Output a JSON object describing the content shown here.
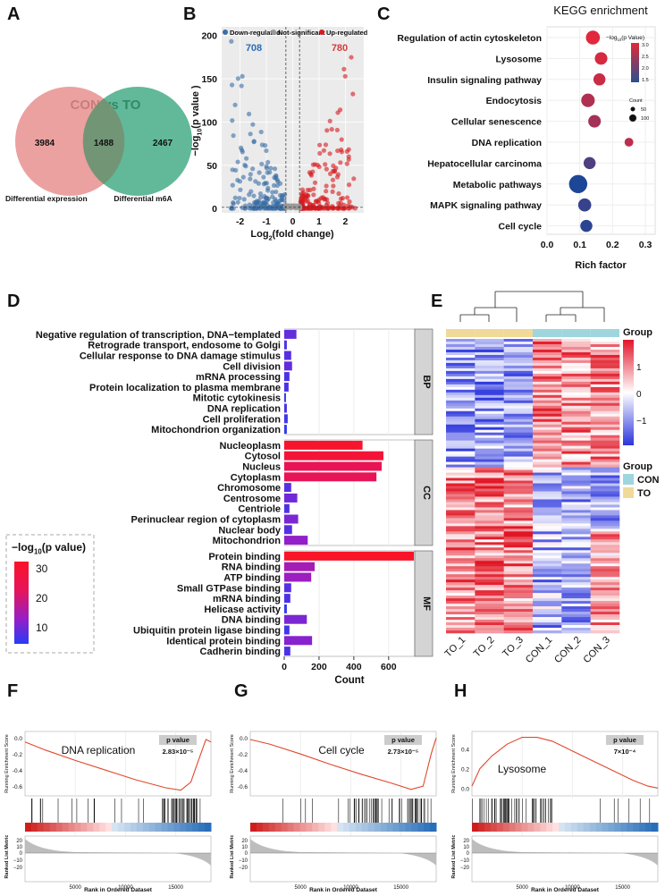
{
  "panels": {
    "A": "A",
    "B": "B",
    "C": "C",
    "D": "D",
    "E": "E",
    "F": "F",
    "G": "G",
    "H": "H"
  },
  "colors": {
    "up": "#d7191c",
    "down": "#3a6ea5",
    "ns": "#999999",
    "venn_left": "#e8908f",
    "venn_right": "#3aa77f",
    "con": "#9fd6de",
    "to": "#f1d99a",
    "gsea_line": "#e0482c"
  },
  "chart_data": [
    {
      "panel": "A",
      "type": "venn",
      "title": "CON vs TO",
      "sets": [
        {
          "name": "Differential expression",
          "only": 3984
        },
        {
          "name": "Differential m6A",
          "only": 2467
        }
      ],
      "intersection": 1488
    },
    {
      "panel": "B",
      "type": "scatter",
      "legend": [
        "Down-regulated",
        "Not-significant",
        "Up-regulated"
      ],
      "counts": {
        "down": "708",
        "up": "780"
      },
      "xlabel_main": "Log",
      "xlabel_sub": "2",
      "xlabel_rest": "(fold change)",
      "ylabel_main": "−log",
      "ylabel_sub": "10",
      "ylabel_rest": "(p value )",
      "xlim": [
        -2.7,
        2.7
      ],
      "ylim": [
        -5,
        210
      ],
      "xticks": [
        "-2",
        "-1",
        "0",
        "1",
        "2"
      ],
      "yticks": [
        "0",
        "50",
        "100",
        "150",
        "200"
      ]
    },
    {
      "panel": "C",
      "type": "scatter",
      "title": "KEGG enrichment",
      "xlabel": "Rich factor",
      "xticks": [
        "0.0",
        "0.1",
        "0.2",
        "0.3"
      ],
      "xlim": [
        0,
        0.33
      ],
      "color_legend_title_main": "−log",
      "color_legend_title_sub": "10",
      "color_legend_title_rest": "(p Value)",
      "color_legend_ticks": [
        "3.0",
        "2.5",
        "2.0",
        "1.5"
      ],
      "size_legend_title": "Count",
      "size_legend": [
        "50",
        "100"
      ],
      "categories": [
        "Regulation of actin cytoskeleton",
        "Lysosome",
        "Insulin signaling pathway",
        "Endocytosis",
        "Cellular senescence",
        "DNA replication",
        "Hepatocellular carcinoma",
        "Metabolic pathways",
        "MAPK signaling pathway",
        "Cell cycle"
      ],
      "rich_factor": [
        0.14,
        0.165,
        0.16,
        0.125,
        0.145,
        0.25,
        0.13,
        0.095,
        0.115,
        0.12
      ],
      "neg_log_p": [
        3.0,
        2.9,
        2.8,
        2.6,
        2.5,
        2.7,
        1.8,
        1.4,
        1.6,
        1.5
      ],
      "count": [
        60,
        45,
        40,
        55,
        45,
        15,
        40,
        120,
        50,
        40
      ]
    },
    {
      "panel": "D",
      "type": "bar",
      "orientation": "horizontal",
      "xlabel": "Count",
      "xticks": [
        "0",
        "200",
        "400",
        "600"
      ],
      "xlim": [
        0,
        750
      ],
      "legend_title_main": "−log",
      "legend_title_sub": "10",
      "legend_title_rest": "(p value)",
      "legend_ticks": [
        "30",
        "20",
        "10"
      ],
      "groups": [
        {
          "name": "BP",
          "categories": [
            "Negative regulation of transcription, DNA−templated",
            "Retrograde transport, endosome to Golgi",
            "Cellular response to DNA damage stimulus",
            "Cell division",
            "mRNA processing",
            "Protein localization to plasma membrane",
            "Mitotic cytokinesis",
            "DNA replication",
            "Cell proliferation",
            "Mitochondrion organization"
          ],
          "values": [
            70,
            15,
            40,
            45,
            30,
            25,
            10,
            15,
            20,
            15
          ],
          "neg_log_p": [
            10,
            8,
            9,
            10,
            8,
            8,
            6,
            8,
            7,
            6
          ]
        },
        {
          "name": "CC",
          "categories": [
            "Nucleoplasm",
            "Cytosol",
            "Nucleus",
            "Cytoplasm",
            "Chromosome",
            "Centrosome",
            "Centriole",
            "Perinuclear region of cytoplasm",
            "Nuclear body",
            "Mitochondrion"
          ],
          "values": [
            450,
            570,
            560,
            530,
            40,
            75,
            30,
            80,
            45,
            135
          ],
          "neg_log_p": [
            32,
            30,
            25,
            24,
            9,
            11,
            8,
            12,
            9,
            14
          ]
        },
        {
          "name": "MF",
          "categories": [
            "Protein binding",
            "RNA binding",
            "ATP binding",
            "Small GTPase binding",
            "mRNA binding",
            "Helicase activity",
            "DNA binding",
            "Ubiquitin protein ligase binding",
            "Identical protein binding",
            "Cadherin binding"
          ],
          "values": [
            745,
            175,
            155,
            40,
            35,
            15,
            130,
            30,
            160,
            35
          ],
          "neg_log_p": [
            33,
            16,
            15,
            9,
            8,
            6,
            12,
            7,
            13,
            8
          ]
        }
      ]
    },
    {
      "panel": "E",
      "type": "heatmap",
      "columns": [
        "TO_1",
        "TO_2",
        "TO_3",
        "CON_1",
        "CON_2",
        "CON_3"
      ],
      "legend_title": "Group",
      "scale_ticks": [
        "1",
        "0",
        "−1"
      ],
      "group_legend": [
        "CON",
        "TO"
      ]
    },
    {
      "panel": "F",
      "type": "line",
      "title": "DNA replication",
      "pvalue_label": "p value",
      "pvalue": "2.83×10⁻⁵",
      "ylabel": "Running Enrichment Score",
      "ylabel2": "Ranked List Metric",
      "xlabel": "Rank in Ordered Dataset",
      "yticks": [
        "0.0",
        "-0.2",
        "-0.4",
        "-0.6"
      ],
      "yticks2": [
        "20",
        "10",
        "0",
        "−10",
        "−20"
      ],
      "xticks": [
        "5000",
        "10000",
        "15000"
      ],
      "x": [
        0,
        2000,
        5000,
        8000,
        11000,
        14000,
        15500,
        16500,
        17200,
        18000,
        18500
      ],
      "y": [
        -0.05,
        -0.15,
        -0.28,
        -0.4,
        -0.52,
        -0.62,
        -0.65,
        -0.55,
        -0.3,
        -0.02,
        -0.05
      ]
    },
    {
      "panel": "G",
      "type": "line",
      "title": "Cell cycle",
      "pvalue_label": "p value",
      "pvalue": "2.73×10⁻⁵",
      "ylabel": "Running Enrichment Score",
      "ylabel2": "Ranked List Metric",
      "xlabel": "Rank in Ordered Dataset",
      "yticks": [
        "0.0",
        "-0.2",
        "-0.4",
        "-0.6"
      ],
      "yticks2": [
        "20",
        "10",
        "0",
        "−10",
        "−20"
      ],
      "xticks": [
        "5000",
        "10000",
        "15000"
      ],
      "x": [
        0,
        2000,
        5000,
        8000,
        11000,
        14000,
        16000,
        17200,
        18000,
        18500
      ],
      "y": [
        -0.02,
        -0.08,
        -0.2,
        -0.33,
        -0.45,
        -0.56,
        -0.64,
        -0.6,
        -0.2,
        0.0
      ]
    },
    {
      "panel": "H",
      "type": "line",
      "title": "Lysosome",
      "pvalue_label": "p value",
      "pvalue": "7×10⁻⁴",
      "ylabel": "Running Enrichment Score",
      "ylabel2": "Ranked List Metric",
      "xlabel": "Rank in Ordered Dataset",
      "yticks": [
        "0.4",
        "0.2",
        "0.0"
      ],
      "yticks2": [
        "20",
        "10",
        "0",
        "−10",
        "−20"
      ],
      "xticks": [
        "5000",
        "10000",
        "15000"
      ],
      "x": [
        0,
        800,
        2000,
        3500,
        5000,
        6500,
        8000,
        10000,
        12000,
        14000,
        16000,
        17500,
        18500
      ],
      "y": [
        0.02,
        0.2,
        0.33,
        0.45,
        0.52,
        0.52,
        0.48,
        0.38,
        0.28,
        0.18,
        0.08,
        0.02,
        0.0
      ]
    }
  ]
}
